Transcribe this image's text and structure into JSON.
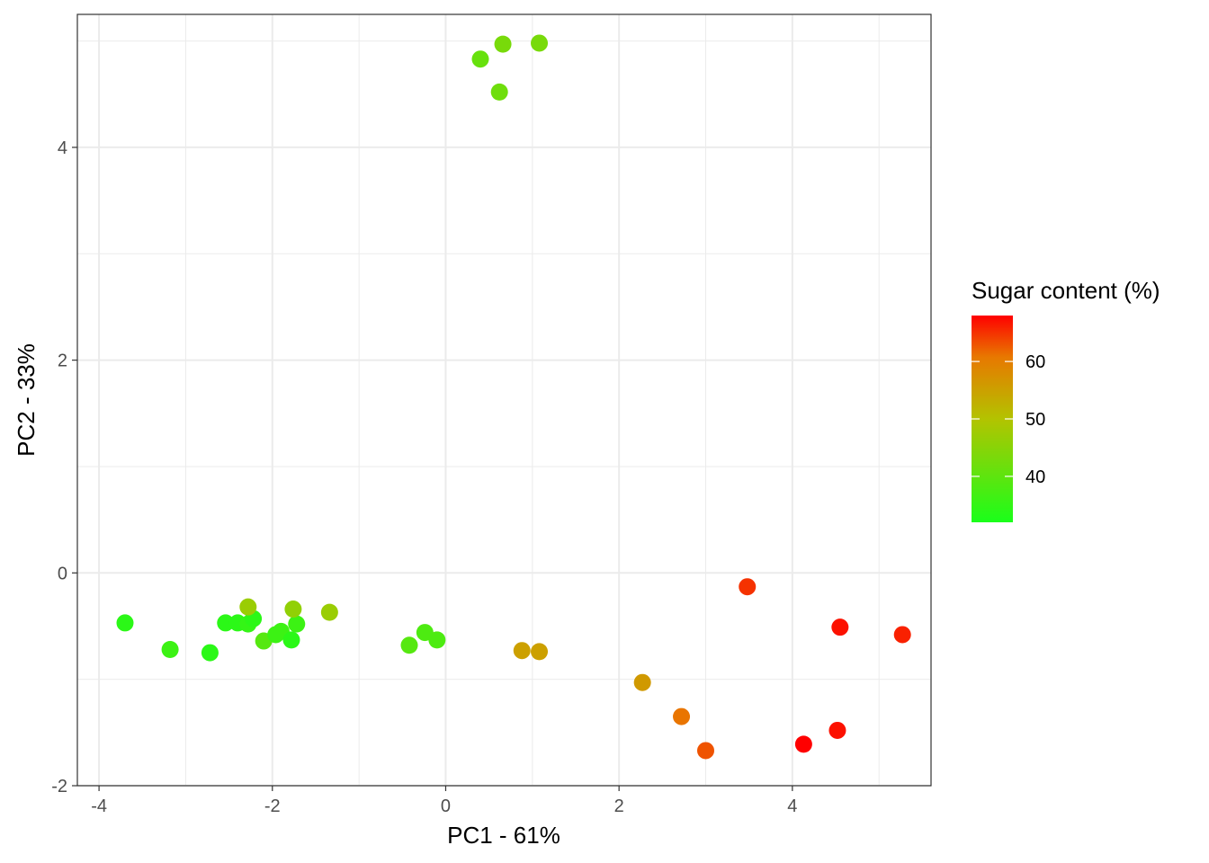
{
  "chart_data": {
    "type": "scatter",
    "xlabel": "PC1 - 61%",
    "ylabel": "PC2 - 33%",
    "xlim": [
      -4.25,
      5.6
    ],
    "ylim": [
      -2.0,
      5.25
    ],
    "x_ticks": [
      -4,
      -2,
      0,
      2,
      4
    ],
    "x_tick_labels": [
      "-4",
      "-2",
      "0",
      "2",
      "4"
    ],
    "y_ticks": [
      -2,
      0,
      2,
      4
    ],
    "y_tick_labels": [
      "-2",
      "0",
      "2",
      "4"
    ],
    "grid": true,
    "legend": {
      "title": "Sugar content (%)",
      "position": "right",
      "type": "colorbar",
      "range": [
        32,
        68
      ],
      "ticks": [
        40,
        50,
        60
      ],
      "tick_labels": [
        "40",
        "50",
        "60"
      ],
      "low_color": "#1aff1a",
      "high_color": "#ff0000"
    },
    "points": [
      {
        "x": -3.7,
        "y": -0.47,
        "sugar": 34
      },
      {
        "x": -3.18,
        "y": -0.72,
        "sugar": 36
      },
      {
        "x": -2.72,
        "y": -0.75,
        "sugar": 34
      },
      {
        "x": -2.54,
        "y": -0.47,
        "sugar": 34
      },
      {
        "x": -2.4,
        "y": -0.47,
        "sugar": 34
      },
      {
        "x": -2.28,
        "y": -0.48,
        "sugar": 35
      },
      {
        "x": -2.22,
        "y": -0.43,
        "sugar": 34
      },
      {
        "x": -2.28,
        "y": -0.32,
        "sugar": 47
      },
      {
        "x": -2.1,
        "y": -0.64,
        "sugar": 39
      },
      {
        "x": -1.96,
        "y": -0.58,
        "sugar": 36
      },
      {
        "x": -1.9,
        "y": -0.55,
        "sugar": 36
      },
      {
        "x": -1.78,
        "y": -0.63,
        "sugar": 34
      },
      {
        "x": -1.72,
        "y": -0.48,
        "sugar": 36
      },
      {
        "x": -1.76,
        "y": -0.34,
        "sugar": 46
      },
      {
        "x": -1.34,
        "y": -0.37,
        "sugar": 47
      },
      {
        "x": -0.42,
        "y": -0.68,
        "sugar": 39
      },
      {
        "x": -0.24,
        "y": -0.56,
        "sugar": 38
      },
      {
        "x": -0.1,
        "y": -0.63,
        "sugar": 38
      },
      {
        "x": 0.4,
        "y": 4.83,
        "sugar": 41
      },
      {
        "x": 0.66,
        "y": 4.97,
        "sugar": 43
      },
      {
        "x": 0.62,
        "y": 4.52,
        "sugar": 42
      },
      {
        "x": 1.08,
        "y": 4.98,
        "sugar": 43
      },
      {
        "x": 0.88,
        "y": -0.73,
        "sugar": 55
      },
      {
        "x": 1.08,
        "y": -0.74,
        "sugar": 55
      },
      {
        "x": 2.27,
        "y": -1.03,
        "sugar": 56
      },
      {
        "x": 2.72,
        "y": -1.35,
        "sugar": 61
      },
      {
        "x": 3.0,
        "y": -1.67,
        "sugar": 63
      },
      {
        "x": 3.48,
        "y": -0.13,
        "sugar": 65
      },
      {
        "x": 4.13,
        "y": -1.61,
        "sugar": 68
      },
      {
        "x": 4.52,
        "y": -1.48,
        "sugar": 67
      },
      {
        "x": 4.55,
        "y": -0.51,
        "sugar": 67
      },
      {
        "x": 5.27,
        "y": -0.58,
        "sugar": 66
      }
    ]
  }
}
